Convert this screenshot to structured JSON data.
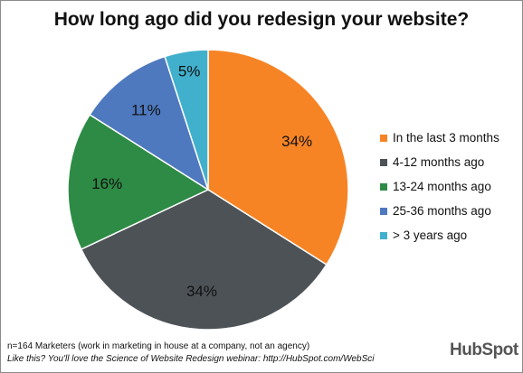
{
  "chart_data": {
    "type": "pie",
    "title": "How long ago did you redesign your website?",
    "slices": [
      {
        "label": "In the last 3 months",
        "value": 34,
        "display": "34%",
        "color": "#f68425"
      },
      {
        "label": "4-12 months ago",
        "value": 34,
        "display": "34%",
        "color": "#4d5257"
      },
      {
        "label": "13-24 months ago",
        "value": 16,
        "display": "16%",
        "color": "#2e8b45"
      },
      {
        "label": "25-36 months ago",
        "value": 11,
        "display": "11%",
        "color": "#4e79bf"
      },
      {
        "label": "> 3 years ago",
        "value": 5,
        "display": "5%",
        "color": "#41b0cc"
      }
    ],
    "legend_position": "right"
  },
  "footnote": {
    "sample": "n=164 Marketers (work in marketing in house at a company, not an agency)",
    "promo": "Like this?  You'll love the Science of Website Redesign webinar: http://HubSpot.com/WebSci"
  },
  "logo_text": "HubSpot"
}
